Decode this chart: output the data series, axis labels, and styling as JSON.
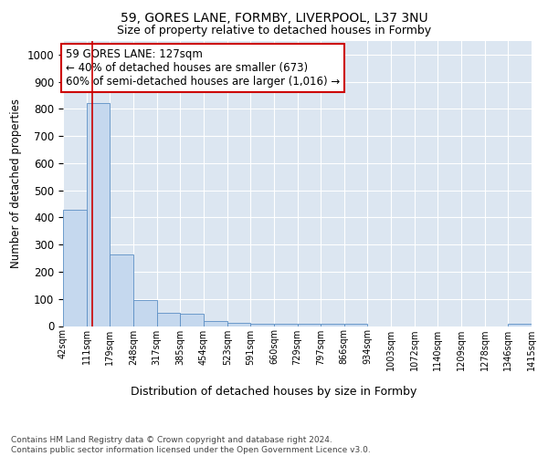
{
  "title1": "59, GORES LANE, FORMBY, LIVERPOOL, L37 3NU",
  "title2": "Size of property relative to detached houses in Formby",
  "xlabel": "Distribution of detached houses by size in Formby",
  "ylabel": "Number of detached properties",
  "bin_edges": [
    42,
    111,
    179,
    248,
    317,
    385,
    454,
    523,
    591,
    660,
    729,
    797,
    866,
    934,
    1003,
    1072,
    1140,
    1209,
    1278,
    1346,
    1415
  ],
  "bar_heights": [
    430,
    820,
    265,
    95,
    48,
    47,
    18,
    13,
    10,
    8,
    7,
    10,
    8,
    0,
    0,
    0,
    0,
    0,
    0,
    8
  ],
  "bar_color": "#c5d8ee",
  "bar_edge_color": "#5b8ec4",
  "property_size": 127,
  "vline_color": "#cc0000",
  "annotation_text": "59 GORES LANE: 127sqm\n← 40% of detached houses are smaller (673)\n60% of semi-detached houses are larger (1,016) →",
  "annotation_box_color": "#ffffff",
  "annotation_box_edge_color": "#cc0000",
  "ylim": [
    0,
    1050
  ],
  "yticks": [
    0,
    100,
    200,
    300,
    400,
    500,
    600,
    700,
    800,
    900,
    1000
  ],
  "background_color": "#dce6f1",
  "footer_text": "Contains HM Land Registry data © Crown copyright and database right 2024.\nContains public sector information licensed under the Open Government Licence v3.0.",
  "grid_color": "#ffffff"
}
